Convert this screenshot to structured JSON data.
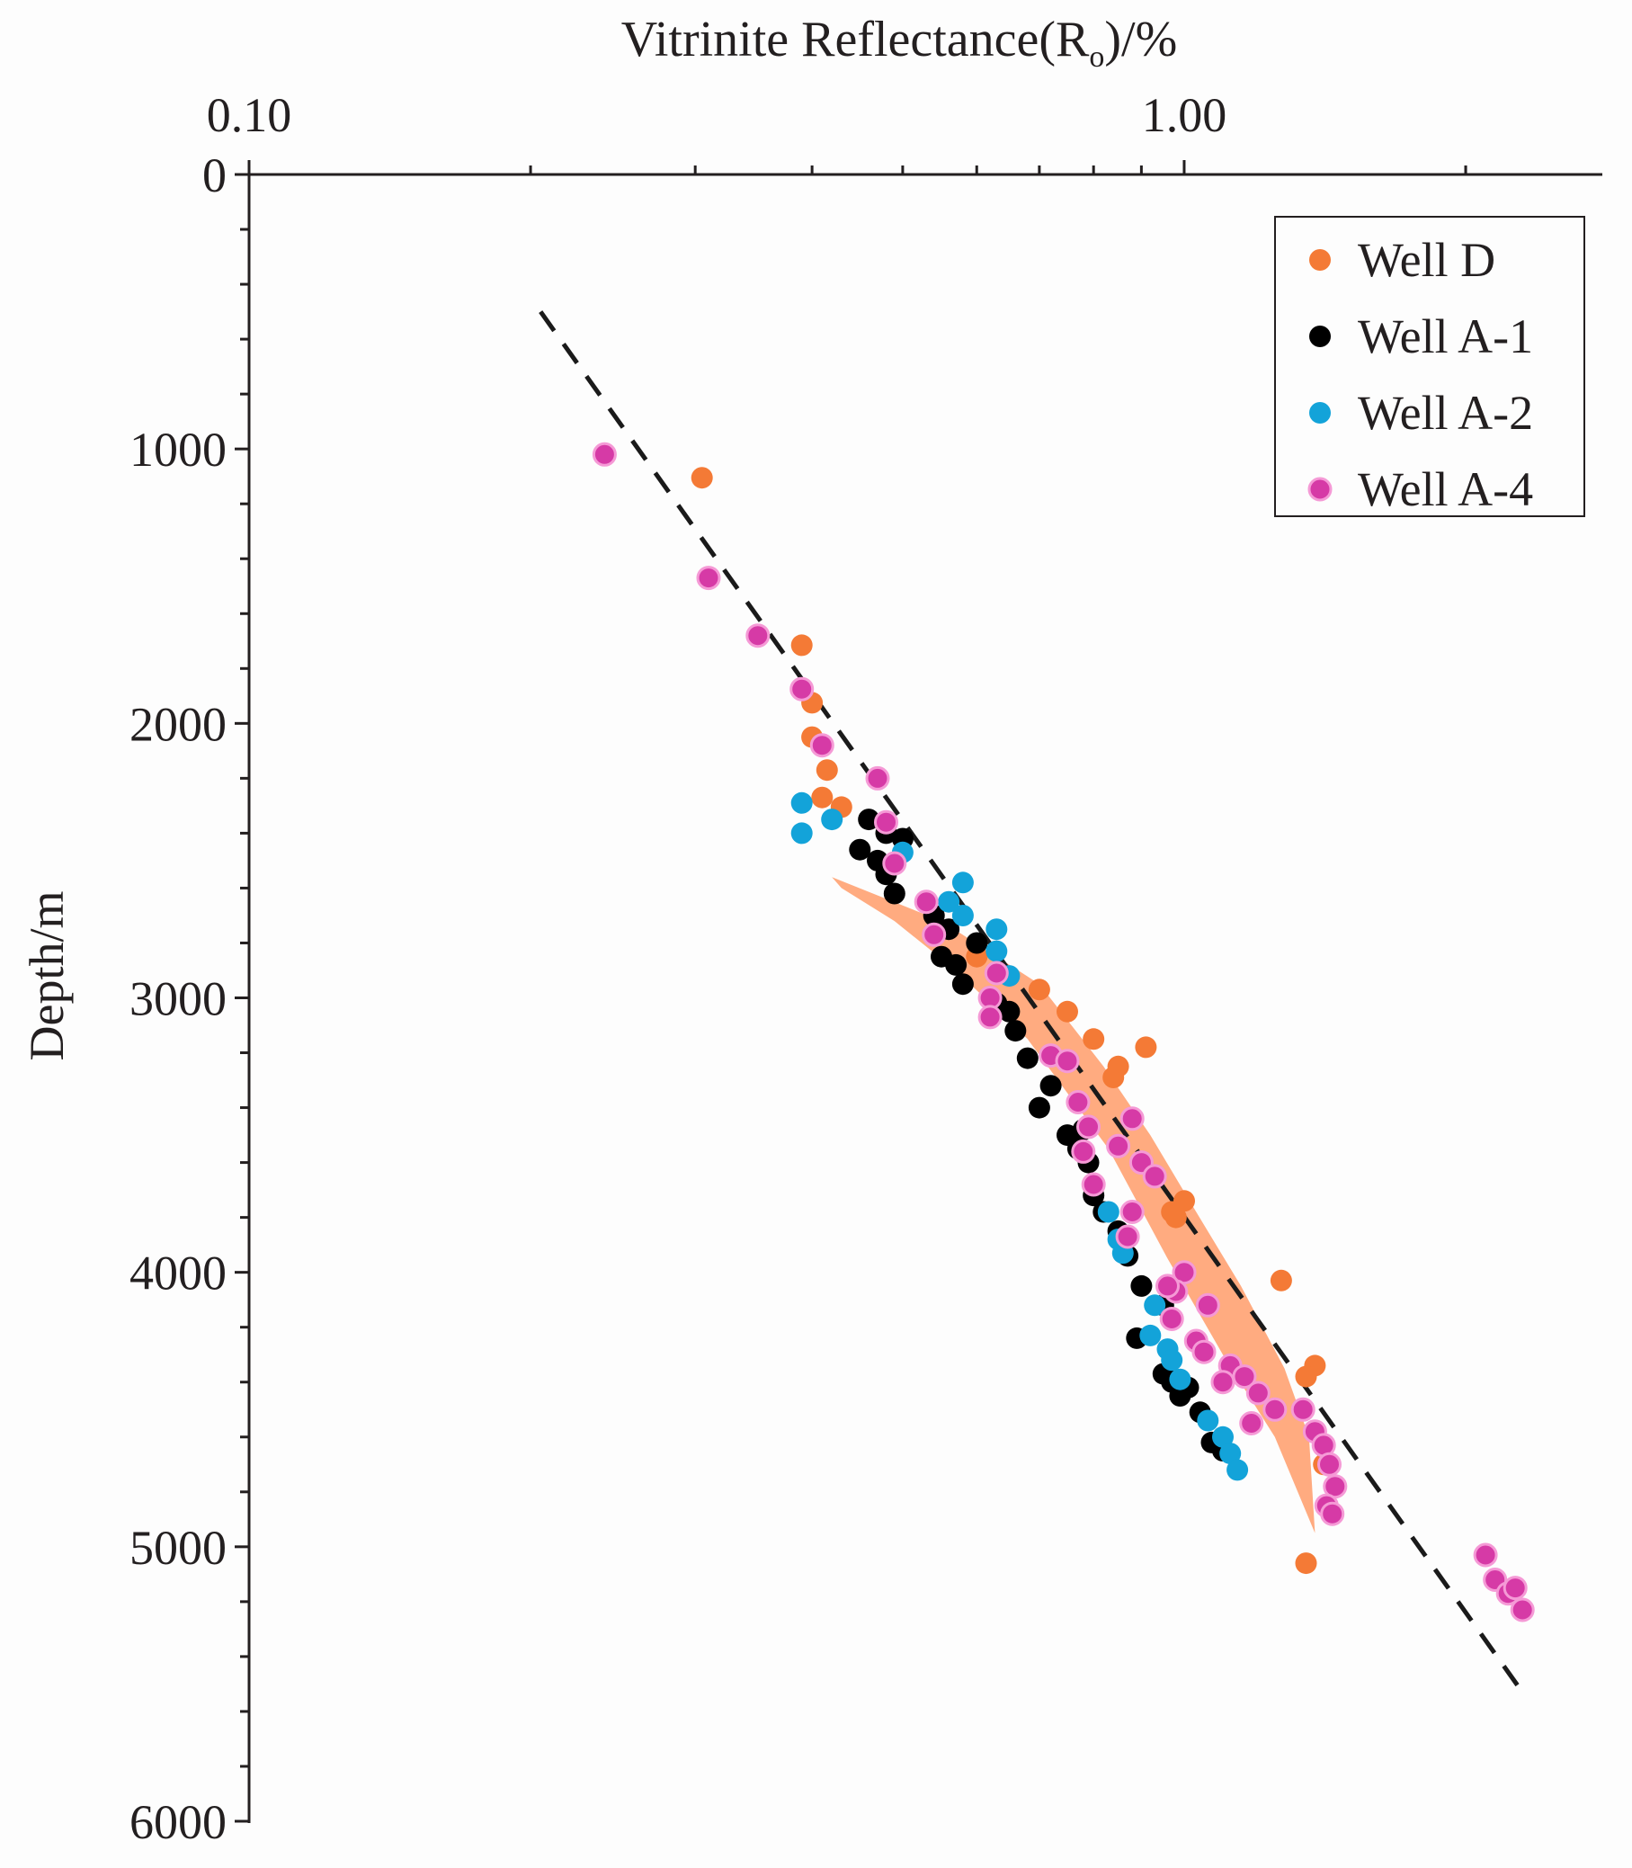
{
  "chart_data": {
    "type": "scatter",
    "title": "",
    "xlabel": "Vitrinite Reflectance(R",
    "xlabel_subscript": "o",
    "xlabel_suffix": ")/%",
    "ylabel": "Depth/m",
    "xscale": "log",
    "xlim": [
      0.1,
      2.8
    ],
    "ylim": [
      0,
      6000
    ],
    "y_inverted": true,
    "x_axis_position": "top",
    "x_ticklabels": [
      "0.10",
      "1.00"
    ],
    "y_ticklabels": [
      "0",
      "1000",
      "2000",
      "3000",
      "4000",
      "5000",
      "6000"
    ],
    "legend_position": "top-right",
    "trend_line": {
      "style": "dashed",
      "color": "#1a1a1a",
      "points": [
        [
          0.205,
          500
        ],
        [
          2.3,
          5530
        ]
      ]
    },
    "shaded_region": {
      "color": "#ff8f55",
      "opacity": 0.75,
      "polygon": [
        [
          0.42,
          2560
        ],
        [
          0.55,
          2720
        ],
        [
          0.7,
          2950
        ],
        [
          0.82,
          3250
        ],
        [
          0.92,
          3500
        ],
        [
          1.03,
          3780
        ],
        [
          1.15,
          4050
        ],
        [
          1.28,
          4350
        ],
        [
          1.36,
          4600
        ],
        [
          1.38,
          4950
        ],
        [
          1.25,
          4600
        ],
        [
          1.1,
          4300
        ],
        [
          0.96,
          3950
        ],
        [
          0.83,
          3550
        ],
        [
          0.68,
          3150
        ],
        [
          0.57,
          2900
        ],
        [
          0.49,
          2720
        ],
        [
          0.43,
          2600
        ]
      ]
    },
    "series": [
      {
        "name": "Well D",
        "color": "#f47a36",
        "edge": "#f47a36",
        "opacity": 1,
        "points": [
          [
            0.305,
            1105
          ],
          [
            0.39,
            1715
          ],
          [
            0.4,
            1925
          ],
          [
            0.4,
            2050
          ],
          [
            0.41,
            2270
          ],
          [
            0.415,
            2170
          ],
          [
            0.43,
            2305
          ],
          [
            0.75,
            3050
          ],
          [
            0.8,
            3150
          ],
          [
            0.85,
            3250
          ],
          [
            0.91,
            3180
          ],
          [
            0.84,
            3290
          ],
          [
            0.97,
            3780
          ],
          [
            1.0,
            3740
          ],
          [
            0.98,
            3800
          ],
          [
            1.27,
            4030
          ],
          [
            1.38,
            4340
          ],
          [
            1.35,
            4380
          ],
          [
            1.41,
            4700
          ],
          [
            1.35,
            5060
          ],
          [
            0.7,
            2970
          ],
          [
            0.6,
            2850
          ]
        ]
      },
      {
        "name": "Well A-1",
        "color": "#000000",
        "edge": "#000000",
        "opacity": 1,
        "points": [
          [
            0.46,
            2350
          ],
          [
            0.48,
            2400
          ],
          [
            0.5,
            2420
          ],
          [
            0.45,
            2460
          ],
          [
            0.47,
            2500
          ],
          [
            0.48,
            2550
          ],
          [
            0.49,
            2620
          ],
          [
            0.54,
            2700
          ],
          [
            0.56,
            2750
          ],
          [
            0.55,
            2850
          ],
          [
            0.57,
            2880
          ],
          [
            0.58,
            2950
          ],
          [
            0.6,
            2800
          ],
          [
            0.62,
            3000
          ],
          [
            0.65,
            3050
          ],
          [
            0.68,
            3220
          ],
          [
            0.7,
            3400
          ],
          [
            0.72,
            3320
          ],
          [
            0.75,
            3500
          ],
          [
            0.77,
            3550
          ],
          [
            0.79,
            3600
          ],
          [
            0.8,
            3720
          ],
          [
            0.82,
            3780
          ],
          [
            0.85,
            3850
          ],
          [
            0.87,
            3940
          ],
          [
            0.9,
            4050
          ],
          [
            0.89,
            4240
          ],
          [
            0.95,
            4120
          ],
          [
            0.95,
            4370
          ],
          [
            0.97,
            4400
          ],
          [
            0.99,
            4450
          ],
          [
            1.01,
            4420
          ],
          [
            1.04,
            4510
          ],
          [
            1.07,
            4620
          ],
          [
            1.1,
            4650
          ],
          [
            0.63,
            3020
          ],
          [
            0.66,
            3120
          ],
          [
            0.78,
            3480
          ]
        ]
      },
      {
        "name": "Well A-2",
        "color": "#13a3d9",
        "edge": "#13a3d9",
        "opacity": 1,
        "points": [
          [
            0.39,
            2290
          ],
          [
            0.39,
            2400
          ],
          [
            0.42,
            2350
          ],
          [
            0.5,
            2470
          ],
          [
            0.58,
            2580
          ],
          [
            0.56,
            2650
          ],
          [
            0.58,
            2700
          ],
          [
            0.63,
            2750
          ],
          [
            0.63,
            2830
          ],
          [
            0.65,
            2920
          ],
          [
            0.83,
            3780
          ],
          [
            0.85,
            3880
          ],
          [
            0.86,
            3930
          ],
          [
            0.93,
            4120
          ],
          [
            0.92,
            4230
          ],
          [
            0.96,
            4280
          ],
          [
            0.97,
            4320
          ],
          [
            0.99,
            4390
          ],
          [
            1.06,
            4540
          ],
          [
            1.1,
            4600
          ],
          [
            1.12,
            4660
          ],
          [
            1.14,
            4720
          ]
        ]
      },
      {
        "name": "Well A-4",
        "color": "#d63aa6",
        "edge": "#f59ad6",
        "opacity": 1,
        "points": [
          [
            0.24,
            1020
          ],
          [
            0.31,
            1470
          ],
          [
            0.35,
            1680
          ],
          [
            0.39,
            1875
          ],
          [
            0.41,
            2080
          ],
          [
            0.47,
            2200
          ],
          [
            0.48,
            2360
          ],
          [
            0.49,
            2510
          ],
          [
            0.53,
            2650
          ],
          [
            0.54,
            2770
          ],
          [
            0.62,
            3000
          ],
          [
            0.62,
            3070
          ],
          [
            0.63,
            2910
          ],
          [
            0.72,
            3210
          ],
          [
            0.75,
            3230
          ],
          [
            0.77,
            3380
          ],
          [
            0.78,
            3560
          ],
          [
            0.8,
            3680
          ],
          [
            0.79,
            3470
          ],
          [
            0.85,
            3540
          ],
          [
            0.88,
            3780
          ],
          [
            0.87,
            3870
          ],
          [
            0.9,
            3600
          ],
          [
            0.93,
            3650
          ],
          [
            1.0,
            4000
          ],
          [
            0.98,
            4070
          ],
          [
            0.97,
            4170
          ],
          [
            1.03,
            4250
          ],
          [
            1.05,
            4290
          ],
          [
            1.12,
            4340
          ],
          [
            1.16,
            4380
          ],
          [
            1.2,
            4440
          ],
          [
            1.25,
            4500
          ],
          [
            1.34,
            4500
          ],
          [
            1.38,
            4580
          ],
          [
            1.41,
            4630
          ],
          [
            1.43,
            4700
          ],
          [
            1.45,
            4780
          ],
          [
            1.42,
            4850
          ],
          [
            1.44,
            4880
          ],
          [
            2.1,
            5030
          ],
          [
            2.15,
            5120
          ],
          [
            2.22,
            5170
          ],
          [
            2.26,
            5150
          ],
          [
            2.3,
            5230
          ],
          [
            0.96,
            4050
          ],
          [
            1.06,
            4120
          ],
          [
            1.1,
            4400
          ],
          [
            1.18,
            4550
          ],
          [
            0.88,
            3440
          ]
        ]
      }
    ]
  }
}
